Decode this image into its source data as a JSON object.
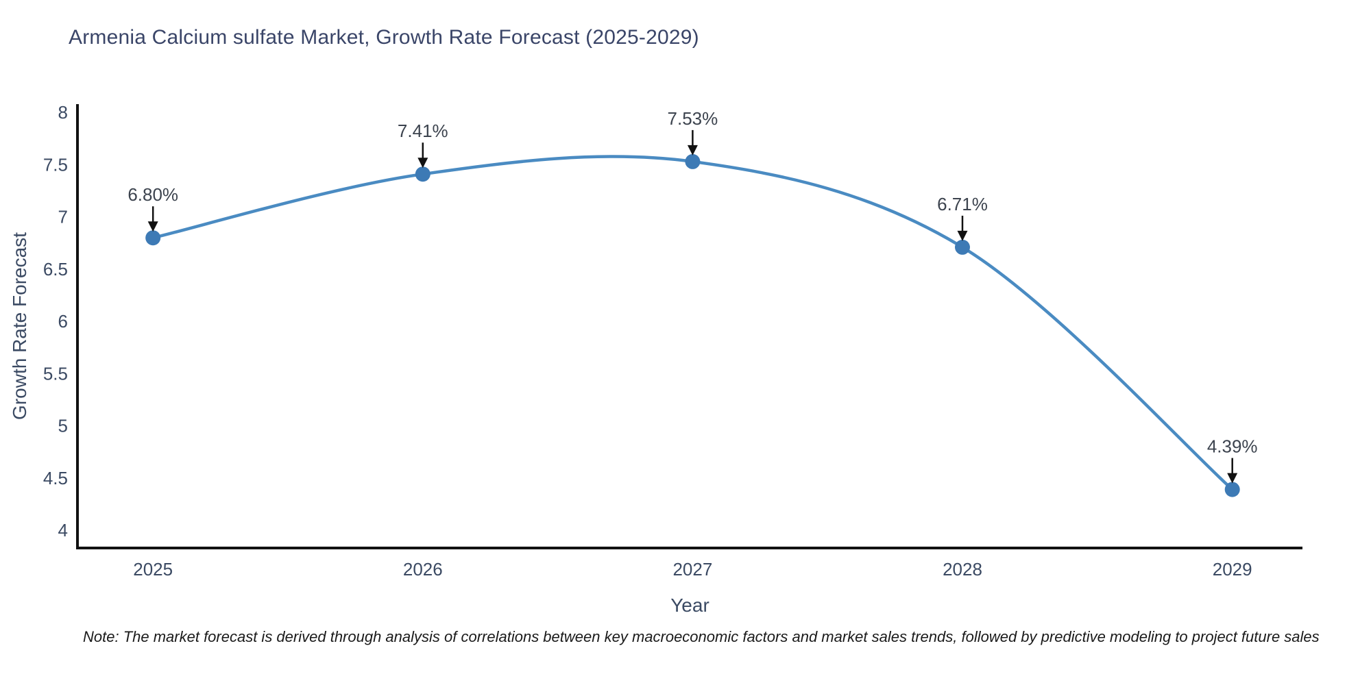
{
  "note": "Note: The market forecast is derived through analysis of correlations between key macroeconomic factors and market sales trends, followed by predictive modeling to project future sales",
  "chart_data": {
    "type": "line",
    "title": "Armenia Calcium sulfate Market, Growth Rate Forecast (2025-2029)",
    "x": [
      2025,
      2026,
      2027,
      2028,
      2029
    ],
    "y": [
      6.8,
      7.41,
      7.53,
      6.71,
      4.39
    ],
    "point_labels": [
      "6.80%",
      "7.41%",
      "7.53%",
      "6.71%",
      "4.39%"
    ],
    "xlabel": "Year",
    "ylabel": "Growth Rate Forecast",
    "xticks": [
      "2025",
      "2026",
      "2027",
      "2028",
      "2029"
    ],
    "yticks": [
      "8",
      "7.5",
      "7",
      "6.5",
      "6",
      "5.5",
      "5",
      "4.5",
      "4"
    ],
    "ytick_values": [
      8,
      7.5,
      7,
      6.5,
      6,
      5.5,
      5,
      4.5,
      4
    ],
    "ylim": [
      3.83,
      8.08
    ],
    "line_shape": "spline",
    "grid": false,
    "legend": "none",
    "colors": {
      "line": "#4a8bc2",
      "marker": "#3d7ab5",
      "axis": "#111111",
      "tick_text": "#3b4a63",
      "axis_title_text": "#3b4a63",
      "title_text": "#3a4568",
      "annotation_text": "#3c434e",
      "arrow": "#111111",
      "background": "#ffffff"
    }
  }
}
